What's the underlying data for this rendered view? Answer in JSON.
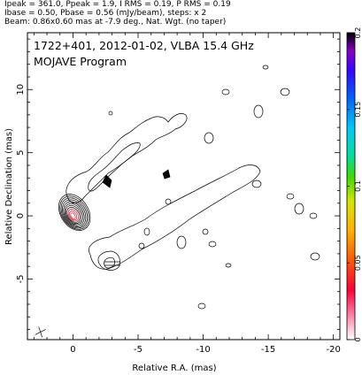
{
  "header": {
    "line1": "Ipeak = 361.0, Ppeak = 1.9, I RMS = 0.19, P RMS = 0.19",
    "line2": "Ibase = 0.50, Pbase = 0.56 (mJy/beam), steps: x 2",
    "line3": "Beam: 0.86x0.60 mas at -7.9 deg., Nat. Wgt. (no taper)"
  },
  "chart_data": {
    "type": "contour-map",
    "title": "1722+401, 2012-01-02, VLBA 15.4 GHz",
    "subtitle": "MOJAVE Program",
    "xlabel": "Relative R.A. (mas)",
    "ylabel": "Relative Declination (mas)",
    "xlim": [
      3.5,
      -20.5
    ],
    "ylim": [
      -9.8,
      14.5
    ],
    "x_axis_reversed": true,
    "x_ticks": [
      0,
      -5,
      -10,
      -15,
      -20
    ],
    "x_tick_labels": [
      "0",
      "-5",
      "-10",
      "-15",
      "-20"
    ],
    "y_ticks": [
      -5,
      0,
      5,
      10
    ],
    "y_tick_labels": [
      "-5",
      "0",
      "5",
      "10"
    ],
    "colorbar": {
      "range": [
        0,
        0.2
      ],
      "ticks": [
        0,
        0.05,
        0.1,
        0.15,
        0.2
      ],
      "tick_labels": [
        "0",
        "0.05",
        "0.1",
        "0.15",
        "0.2"
      ]
    },
    "core": {
      "x": 0,
      "y": 0
    },
    "contour_count": 11,
    "beam_marker": {
      "x": 2.5,
      "y": -9.2
    }
  }
}
